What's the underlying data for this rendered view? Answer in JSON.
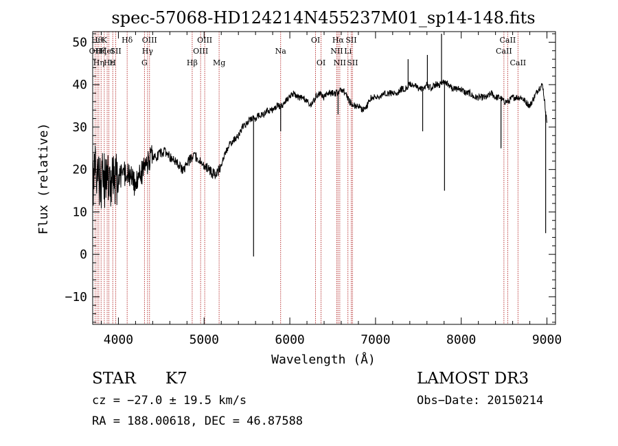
{
  "chart_data": {
    "type": "line",
    "title": "spec-57068-HD124214N455237M01_sp14-148.fits",
    "xlabel": "Wavelength (Å)",
    "ylabel": "Flux (relative)",
    "xlim": [
      3700,
      9100
    ],
    "ylim": [
      -16.5,
      52.5
    ],
    "xticks": [
      4000,
      5000,
      6000,
      7000,
      8000,
      9000
    ],
    "xtick_labels": [
      "4000",
      "5000",
      "6000",
      "7000",
      "8000",
      "9000"
    ],
    "yticks": [
      -10,
      0,
      10,
      20,
      30,
      40,
      50
    ],
    "ytick_labels": [
      "−10",
      "0",
      "10",
      "20",
      "30",
      "40",
      "50"
    ],
    "series": [
      {
        "name": "spectrum",
        "x": [
          3700,
          3750,
          3800,
          3850,
          3900,
          3950,
          4000,
          4050,
          4100,
          4150,
          4200,
          4250,
          4300,
          4350,
          4400,
          4450,
          4500,
          4550,
          4600,
          4650,
          4700,
          4750,
          4800,
          4850,
          4900,
          4950,
          5000,
          5050,
          5100,
          5150,
          5200,
          5250,
          5300,
          5350,
          5400,
          5450,
          5500,
          5550,
          5600,
          5650,
          5700,
          5750,
          5800,
          5850,
          5900,
          5950,
          6000,
          6050,
          6100,
          6150,
          6200,
          6250,
          6300,
          6350,
          6400,
          6450,
          6500,
          6550,
          6600,
          6650,
          6700,
          6750,
          6800,
          6850,
          6900,
          6950,
          7000,
          7050,
          7100,
          7150,
          7200,
          7250,
          7300,
          7350,
          7400,
          7450,
          7500,
          7550,
          7600,
          7650,
          7700,
          7750,
          7800,
          7850,
          7900,
          7950,
          8000,
          8050,
          8100,
          8150,
          8200,
          8250,
          8300,
          8350,
          8400,
          8450,
          8500,
          8550,
          8600,
          8650,
          8700,
          8750,
          8800,
          8850,
          8900,
          8950,
          9000
        ],
        "y": [
          18,
          20,
          17,
          18,
          16,
          17,
          18,
          19,
          19,
          18,
          16,
          19,
          20,
          22,
          23,
          23,
          24,
          24,
          23,
          22,
          21,
          20,
          21,
          23,
          23,
          22,
          21,
          20,
          19,
          19,
          21,
          24,
          26,
          27,
          28,
          30,
          31,
          32,
          32,
          33,
          33,
          34,
          34,
          35,
          35,
          36,
          37,
          38,
          37,
          37,
          36,
          35,
          37,
          38,
          37,
          38,
          38,
          38,
          39,
          38,
          36,
          35,
          35,
          34,
          35,
          37,
          37,
          37,
          38,
          38,
          38,
          38,
          39,
          39,
          40,
          40,
          39,
          39,
          40,
          39,
          40,
          40,
          41,
          40,
          39,
          39,
          39,
          38,
          38,
          37,
          37,
          37,
          37,
          38,
          37,
          37,
          36,
          36,
          37,
          37,
          37,
          36,
          35,
          37,
          39,
          40,
          31
        ]
      }
    ],
    "features": [
      {
        "x": 5577,
        "y": -0.5
      },
      {
        "x": 5893,
        "y": 29
      },
      {
        "x": 6563,
        "y": 33
      },
      {
        "x": 7380,
        "y": 46
      },
      {
        "x": 7550,
        "y": 29
      },
      {
        "x": 7605,
        "y": 47
      },
      {
        "x": 7770,
        "y": 52
      },
      {
        "x": 7805,
        "y": 15
      },
      {
        "x": 8464,
        "y": 25
      },
      {
        "x": 8985,
        "y": 5
      }
    ],
    "lines": [
      {
        "x": 3728,
        "label": "OII",
        "row": 2
      },
      {
        "x": 3750,
        "label": "Hθ",
        "row": 1
      },
      {
        "x": 3771,
        "label": "Hη",
        "row": 3
      },
      {
        "x": 3798,
        "label": "Hζ",
        "row": 2
      },
      {
        "x": 3835,
        "label": "K",
        "row": 1
      },
      {
        "x": 3869,
        "label": "HeI",
        "row": 2
      },
      {
        "x": 3889,
        "label": "Hε",
        "row": 3
      },
      {
        "x": 3934,
        "label": "H",
        "row": 3
      },
      {
        "x": 3969,
        "label": "SII",
        "row": 2
      },
      {
        "x": 4102,
        "label": "Hδ",
        "row": 1
      },
      {
        "x": 4304,
        "label": "G",
        "row": 3
      },
      {
        "x": 4340,
        "label": "Hγ",
        "row": 2
      },
      {
        "x": 4363,
        "label": "OIII",
        "row": 1
      },
      {
        "x": 4861,
        "label": "Hβ",
        "row": 3
      },
      {
        "x": 4959,
        "label": "OIII",
        "row": 2
      },
      {
        "x": 5007,
        "label": "OIII",
        "row": 1
      },
      {
        "x": 5175,
        "label": "Mg",
        "row": 3
      },
      {
        "x": 5893,
        "label": "Na",
        "row": 2
      },
      {
        "x": 6300,
        "label": "OI",
        "row": 1
      },
      {
        "x": 6364,
        "label": "OI",
        "row": 3
      },
      {
        "x": 6548,
        "label": "NII",
        "row": 2
      },
      {
        "x": 6563,
        "label": "Hα",
        "row": 1
      },
      {
        "x": 6583,
        "label": "NII",
        "row": 3
      },
      {
        "x": 6678,
        "label": "Li",
        "row": 2
      },
      {
        "x": 6716,
        "label": "SII",
        "row": 1
      },
      {
        "x": 6731,
        "label": "SII",
        "row": 3
      },
      {
        "x": 8498,
        "label": "CaII",
        "row": 2
      },
      {
        "x": 8542,
        "label": "CaII",
        "row": 1
      },
      {
        "x": 8662,
        "label": "CaII",
        "row": 3
      }
    ],
    "grid": false,
    "legend": "none"
  },
  "info": {
    "object_class": "STAR",
    "subclass": "K7",
    "survey": "LAMOST DR3",
    "cz_line": "cz = −27.0 ± 19.5 km/s",
    "obs_date_line": "Obs−Date: 20150214",
    "coords_line": "RA = 188.00618, DEC =  46.87588"
  }
}
